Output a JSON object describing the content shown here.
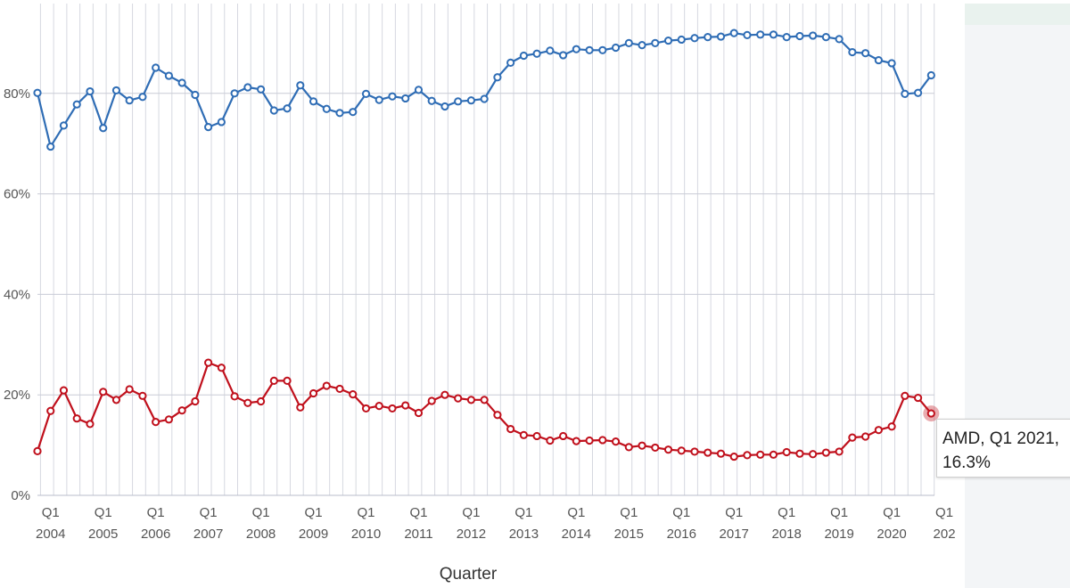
{
  "chart_data": {
    "type": "line",
    "xlabel": "Quarter",
    "ylabel": "",
    "ylim": [
      0,
      95
    ],
    "y_ticks": [
      "0%",
      "20%",
      "40%",
      "60%",
      "80%"
    ],
    "x_ticks": [
      {
        "q": "Q1",
        "year": "2004"
      },
      {
        "q": "Q1",
        "year": "2005"
      },
      {
        "q": "Q1",
        "year": "2006"
      },
      {
        "q": "Q1",
        "year": "2007"
      },
      {
        "q": "Q1",
        "year": "2008"
      },
      {
        "q": "Q1",
        "year": "2009"
      },
      {
        "q": "Q1",
        "year": "2010"
      },
      {
        "q": "Q1",
        "year": "2011"
      },
      {
        "q": "Q1",
        "year": "2012"
      },
      {
        "q": "Q1",
        "year": "2013"
      },
      {
        "q": "Q1",
        "year": "2014"
      },
      {
        "q": "Q1",
        "year": "2015"
      },
      {
        "q": "Q1",
        "year": "2016"
      },
      {
        "q": "Q1",
        "year": "2017"
      },
      {
        "q": "Q1",
        "year": "2018"
      },
      {
        "q": "Q1",
        "year": "2019"
      },
      {
        "q": "Q1",
        "year": "2020"
      },
      {
        "q": "Q1",
        "year": "202"
      }
    ],
    "grid": true,
    "series": [
      {
        "color": "#2f6db5",
        "values": [
          80.1,
          69.4,
          73.6,
          77.8,
          80.4,
          73.1,
          80.6,
          78.6,
          79.3,
          85.1,
          83.5,
          82.1,
          79.7,
          73.3,
          74.3,
          80.0,
          81.2,
          80.8,
          76.6,
          77.0,
          81.6,
          78.4,
          76.9,
          76.1,
          76.3,
          79.9,
          78.7,
          79.4,
          79.0,
          80.7,
          78.5,
          77.4,
          78.4,
          78.6,
          78.9,
          83.2,
          86.1,
          87.5,
          87.9,
          88.5,
          87.6,
          88.8,
          88.6,
          88.6,
          89.1,
          90.0,
          89.6,
          90.0,
          90.5,
          90.7,
          91.0,
          91.2,
          91.3,
          92.0,
          91.6,
          91.7,
          91.7,
          91.2,
          91.4,
          91.5,
          91.2,
          90.8,
          88.2,
          88.0,
          86.6,
          86.0,
          79.9,
          80.1,
          83.6
        ]
      },
      {
        "color": "#c0101c",
        "values": [
          8.8,
          16.8,
          20.9,
          15.3,
          14.2,
          20.6,
          19.0,
          21.1,
          19.8,
          14.6,
          15.1,
          16.9,
          18.7,
          26.4,
          25.4,
          19.7,
          18.4,
          18.7,
          22.8,
          22.8,
          17.5,
          20.3,
          21.8,
          21.2,
          20.1,
          17.3,
          17.8,
          17.3,
          17.9,
          16.4,
          18.8,
          20.0,
          19.3,
          19.0,
          19.0,
          16.0,
          13.2,
          12.0,
          11.8,
          10.9,
          11.8,
          10.8,
          10.9,
          11.0,
          10.7,
          9.6,
          9.9,
          9.5,
          9.1,
          8.9,
          8.7,
          8.5,
          8.3,
          7.7,
          8.0,
          8.1,
          8.1,
          8.6,
          8.3,
          8.2,
          8.5,
          8.7,
          11.5,
          11.7,
          13.0,
          13.7,
          19.8,
          19.4,
          16.3
        ]
      }
    ],
    "highlight": {
      "series_index": 1,
      "point_index": 68
    }
  },
  "tooltip": {
    "line1": "AMD, Q1 2021,",
    "line2": "16.3%"
  }
}
